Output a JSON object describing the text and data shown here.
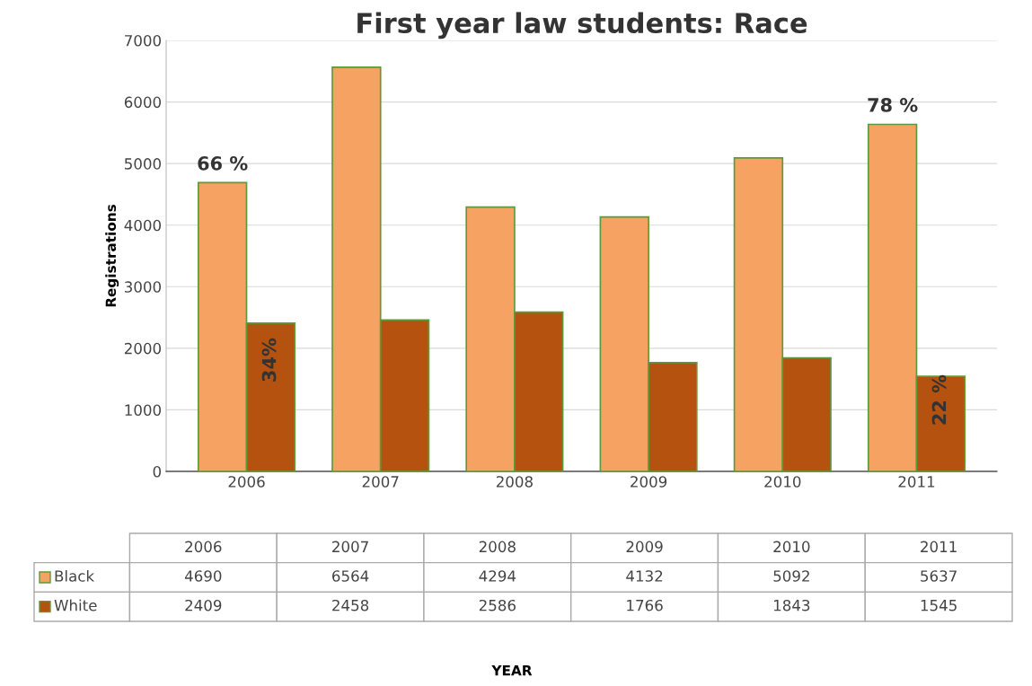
{
  "chart_data": {
    "type": "bar",
    "title": "First year law students: Race",
    "ylabel": "Registrations",
    "categories": [
      "2006",
      "2007",
      "2008",
      "2009",
      "2010",
      "2011"
    ],
    "series": [
      {
        "name": "Black",
        "color": "#f5a263",
        "values": [
          4690,
          6564,
          4294,
          4132,
          5092,
          5637
        ]
      },
      {
        "name": "White",
        "color": "#b5520f",
        "values": [
          2409,
          2458,
          2586,
          1766,
          1843,
          1545
        ]
      }
    ],
    "ylim": [
      0,
      7000
    ],
    "yticks": [
      0,
      1000,
      2000,
      3000,
      4000,
      5000,
      6000,
      7000
    ],
    "grid": "y",
    "data_labels": true,
    "legend": "bottom",
    "annotations": [
      "YEAR",
      {
        "text": "66 %",
        "x": "2006",
        "y": 4690
      },
      {
        "text": "34%",
        "x": "2006",
        "y": 2409
      },
      {
        "text": "78 %",
        "x": "2011",
        "y": 5637
      },
      {
        "text": "22 %",
        "x": "2011",
        "y": 1545
      }
    ]
  }
}
